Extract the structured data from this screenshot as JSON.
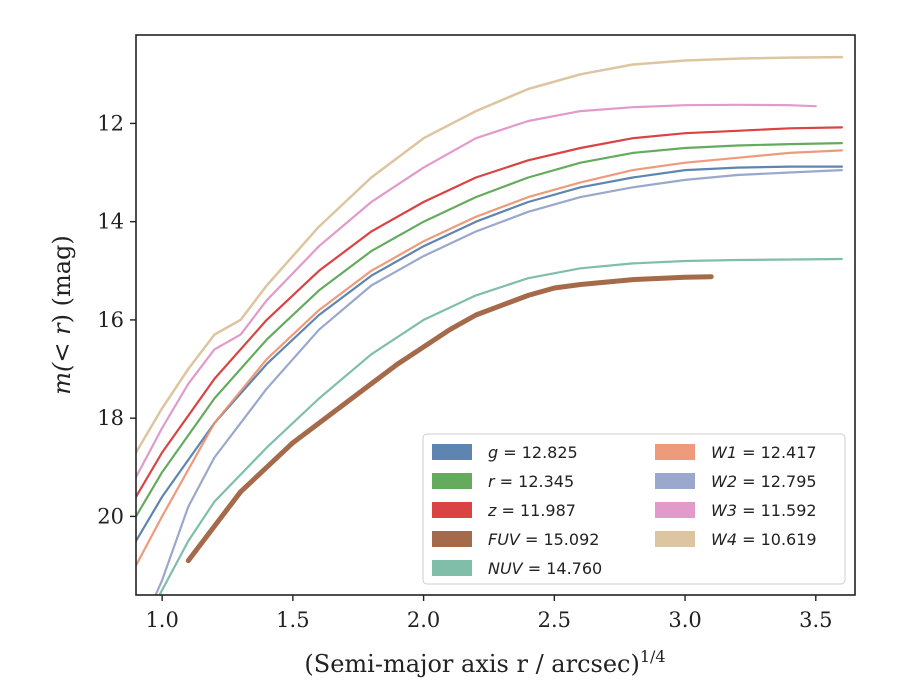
{
  "chart_data": {
    "type": "line",
    "x_label": "(Semi-major axis r / arcsec)",
    "x_label_exponent": "1/4",
    "y_label_prefix": "m(",
    "y_label_math": "< r",
    "y_label_suffix": ") (mag)",
    "xlim": [
      0.9,
      3.65
    ],
    "ylim": [
      21.6,
      10.2
    ],
    "y_inverted": true,
    "x_ticks": [
      "1.0",
      "1.5",
      "2.0",
      "2.5",
      "3.0",
      "3.5"
    ],
    "y_ticks": [
      "12",
      "14",
      "16",
      "18",
      "20"
    ],
    "legend_position": "lower-right",
    "grid": false,
    "series": [
      {
        "name": "g",
        "value": "12.825",
        "color": "#4c78a8",
        "width": 2.2,
        "x": [
          0.9,
          1.0,
          1.2,
          1.4,
          1.6,
          1.8,
          2.0,
          2.2,
          2.4,
          2.6,
          2.8,
          3.0,
          3.2,
          3.4,
          3.6
        ],
        "y": [
          20.5,
          19.6,
          18.1,
          16.9,
          15.9,
          15.1,
          14.5,
          14.0,
          13.6,
          13.3,
          13.1,
          12.95,
          12.9,
          12.88,
          12.88
        ]
      },
      {
        "name": "r",
        "value": "12.345",
        "color": "#54a24b",
        "width": 2.2,
        "x": [
          0.9,
          1.0,
          1.2,
          1.4,
          1.6,
          1.8,
          2.0,
          2.2,
          2.4,
          2.6,
          2.8,
          3.0,
          3.2,
          3.4,
          3.6
        ],
        "y": [
          20.0,
          19.1,
          17.6,
          16.4,
          15.4,
          14.6,
          14.0,
          13.5,
          13.1,
          12.8,
          12.6,
          12.5,
          12.45,
          12.42,
          12.4
        ]
      },
      {
        "name": "z",
        "value": "11.987",
        "color": "#d62f2f",
        "width": 2.2,
        "x": [
          0.9,
          1.0,
          1.2,
          1.4,
          1.6,
          1.8,
          2.0,
          2.2,
          2.4,
          2.6,
          2.8,
          3.0,
          3.2,
          3.4,
          3.6
        ],
        "y": [
          19.6,
          18.7,
          17.2,
          16.0,
          15.0,
          14.2,
          13.6,
          13.1,
          12.75,
          12.5,
          12.3,
          12.2,
          12.15,
          12.1,
          12.08
        ]
      },
      {
        "name": "FUV",
        "value": "15.092",
        "color": "#9a5a36",
        "width": 5,
        "x": [
          1.1,
          1.2,
          1.3,
          1.4,
          1.5,
          1.6,
          1.7,
          1.8,
          1.9,
          2.0,
          2.1,
          2.2,
          2.3,
          2.4,
          2.5,
          2.6,
          2.8,
          3.0,
          3.1
        ],
        "y": [
          20.9,
          20.2,
          19.5,
          19.0,
          18.5,
          18.1,
          17.7,
          17.3,
          16.9,
          16.55,
          16.2,
          15.9,
          15.7,
          15.5,
          15.35,
          15.28,
          15.18,
          15.13,
          15.12
        ]
      },
      {
        "name": "NUV",
        "value": "14.760",
        "color": "#72b7a1",
        "width": 2.2,
        "x": [
          0.9,
          1.0,
          1.1,
          1.2,
          1.4,
          1.6,
          1.8,
          2.0,
          2.2,
          2.4,
          2.6,
          2.8,
          3.0,
          3.2,
          3.4,
          3.6
        ],
        "y": [
          22.5,
          21.5,
          20.5,
          19.7,
          18.6,
          17.6,
          16.7,
          16.0,
          15.5,
          15.15,
          14.95,
          14.85,
          14.8,
          14.78,
          14.77,
          14.76
        ]
      },
      {
        "name": "W1",
        "value": "12.417",
        "color": "#eb906d",
        "width": 2.2,
        "x": [
          0.9,
          1.0,
          1.2,
          1.4,
          1.6,
          1.8,
          2.0,
          2.2,
          2.4,
          2.6,
          2.8,
          3.0,
          3.2,
          3.4,
          3.6
        ],
        "y": [
          21.0,
          20.0,
          18.1,
          16.8,
          15.8,
          15.0,
          14.4,
          13.9,
          13.5,
          13.2,
          12.95,
          12.8,
          12.7,
          12.6,
          12.55
        ]
      },
      {
        "name": "W2",
        "value": "12.795",
        "color": "#8f9fc8",
        "width": 2.2,
        "x": [
          0.9,
          1.0,
          1.1,
          1.2,
          1.3,
          1.4,
          1.6,
          1.8,
          2.0,
          2.2,
          2.4,
          2.6,
          2.8,
          3.0,
          3.2,
          3.4,
          3.6
        ],
        "y": [
          22.5,
          21.3,
          19.8,
          18.8,
          18.1,
          17.4,
          16.2,
          15.3,
          14.7,
          14.2,
          13.8,
          13.5,
          13.3,
          13.15,
          13.05,
          13.0,
          12.95
        ]
      },
      {
        "name": "W3",
        "value": "11.592",
        "color": "#de8fc3",
        "width": 2.2,
        "x": [
          0.9,
          1.0,
          1.1,
          1.2,
          1.3,
          1.4,
          1.6,
          1.8,
          2.0,
          2.2,
          2.4,
          2.6,
          2.8,
          3.0,
          3.2,
          3.4,
          3.5
        ],
        "y": [
          19.2,
          18.2,
          17.3,
          16.6,
          16.3,
          15.6,
          14.5,
          13.6,
          12.9,
          12.3,
          11.95,
          11.75,
          11.67,
          11.63,
          11.62,
          11.63,
          11.65
        ]
      },
      {
        "name": "W4",
        "value": "10.619",
        "color": "#d9bf97",
        "width": 2.5,
        "x": [
          0.9,
          1.0,
          1.1,
          1.2,
          1.3,
          1.4,
          1.6,
          1.8,
          2.0,
          2.2,
          2.4,
          2.6,
          2.8,
          3.0,
          3.2,
          3.4,
          3.6
        ],
        "y": [
          18.7,
          17.8,
          17.0,
          16.3,
          16.0,
          15.3,
          14.1,
          13.1,
          12.3,
          11.75,
          11.3,
          11.0,
          10.8,
          10.72,
          10.68,
          10.66,
          10.65
        ]
      }
    ]
  }
}
